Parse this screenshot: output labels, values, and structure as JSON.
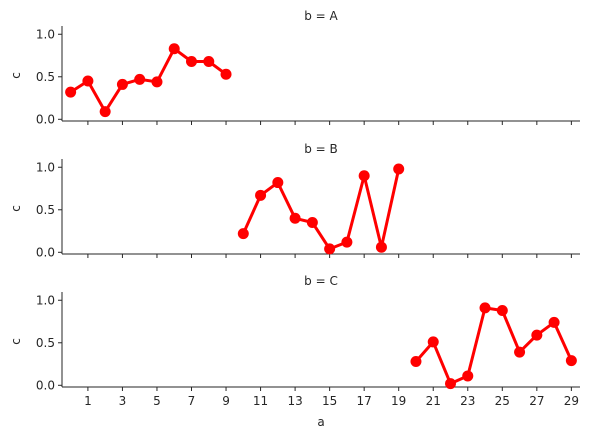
{
  "chart_data": {
    "type": "line",
    "xlabel": "a",
    "ylabel": "c",
    "x_ticks": [
      1,
      3,
      5,
      7,
      9,
      11,
      13,
      15,
      17,
      19,
      21,
      23,
      25,
      27,
      29
    ],
    "xlim": [
      -0.5,
      29.5
    ],
    "ylim": [
      -0.02,
      1.05
    ],
    "y_ticks": [
      "0.0",
      "0.5",
      "1.0"
    ],
    "series_color": "#ff0000",
    "panels": [
      {
        "title": "b = A",
        "x": [
          0,
          1,
          2,
          3,
          4,
          5,
          6,
          7,
          8,
          9
        ],
        "y": [
          0.32,
          0.45,
          0.09,
          0.41,
          0.47,
          0.44,
          0.83,
          0.68,
          0.68,
          0.53
        ]
      },
      {
        "title": "b = B",
        "x": [
          10,
          11,
          12,
          13,
          14,
          15,
          16,
          17,
          18,
          19
        ],
        "y": [
          0.22,
          0.67,
          0.82,
          0.4,
          0.35,
          0.04,
          0.12,
          0.9,
          0.06,
          0.98
        ]
      },
      {
        "title": "b = C",
        "x": [
          20,
          21,
          22,
          23,
          24,
          25,
          26,
          27,
          28,
          29
        ],
        "y": [
          0.28,
          0.51,
          0.02,
          0.11,
          0.91,
          0.88,
          0.39,
          0.59,
          0.74,
          0.29
        ]
      }
    ]
  }
}
